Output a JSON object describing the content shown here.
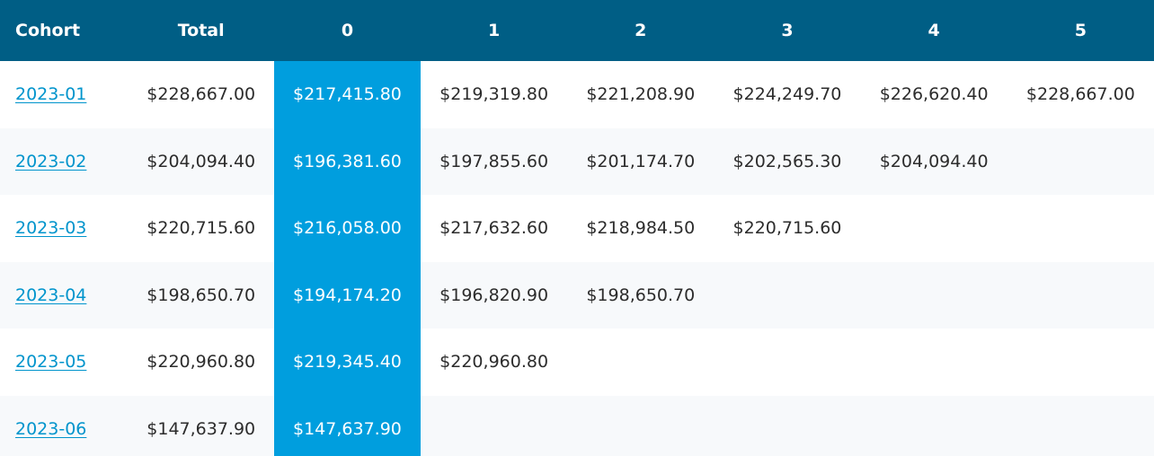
{
  "table": {
    "headers": [
      "Cohort",
      "Total",
      "0",
      "1",
      "2",
      "3",
      "4",
      "5"
    ],
    "rows": [
      {
        "cohort": "2023-01",
        "total": "$228,667.00",
        "periods": [
          "$217,415.80",
          "$219,319.80",
          "$221,208.90",
          "$224,249.70",
          "$226,620.40",
          "$228,667.00"
        ]
      },
      {
        "cohort": "2023-02",
        "total": "$204,094.40",
        "periods": [
          "$196,381.60",
          "$197,855.60",
          "$201,174.70",
          "$202,565.30",
          "$204,094.40",
          ""
        ]
      },
      {
        "cohort": "2023-03",
        "total": "$220,715.60",
        "periods": [
          "$216,058.00",
          "$217,632.60",
          "$218,984.50",
          "$220,715.60",
          "",
          ""
        ]
      },
      {
        "cohort": "2023-04",
        "total": "$198,650.70",
        "periods": [
          "$194,174.20",
          "$196,820.90",
          "$198,650.70",
          "",
          "",
          ""
        ]
      },
      {
        "cohort": "2023-05",
        "total": "$220,960.80",
        "periods": [
          "$219,345.40",
          "$220,960.80",
          "",
          "",
          "",
          ""
        ]
      },
      {
        "cohort": "2023-06",
        "total": "$147,637.90",
        "periods": [
          "$147,637.90",
          "",
          "",
          "",
          "",
          ""
        ]
      }
    ]
  },
  "colors": {
    "header_bg": "#005e85",
    "highlight_column_bg": "#009ede",
    "link": "#0094cc"
  }
}
